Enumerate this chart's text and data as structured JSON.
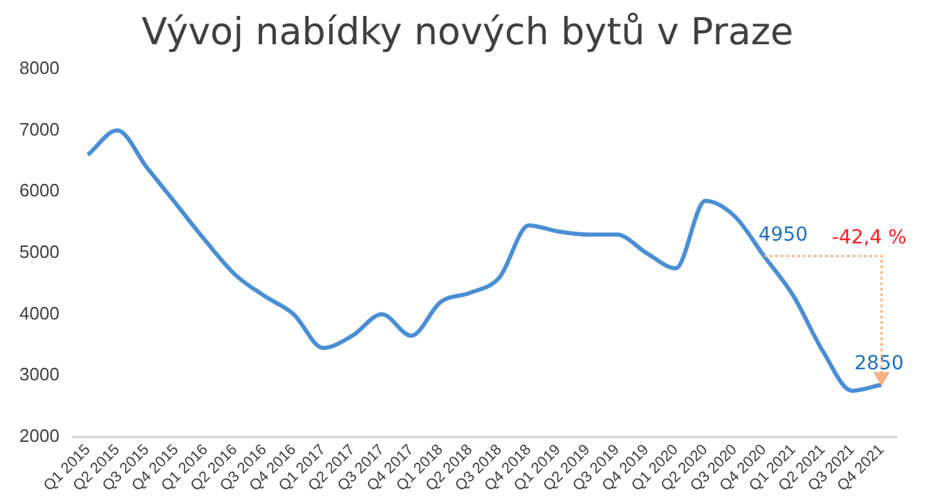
{
  "chart_data": {
    "type": "line",
    "title": "Vývoj nabídky nových bytů v Praze",
    "categories": [
      "Q1 2015",
      "Q2 2015",
      "Q3 2015",
      "Q4 2015",
      "Q1 2016",
      "Q2 2016",
      "Q3 2016",
      "Q4 2016",
      "Q1 2017",
      "Q2 2017",
      "Q3 2017",
      "Q4 2017",
      "Q1 2018",
      "Q2 2018",
      "Q3 2018",
      "Q4 2018",
      "Q1 2019",
      "Q2 2019",
      "Q3 2019",
      "Q4 2019",
      "Q1 2020",
      "Q2 2020",
      "Q3 2020",
      "Q4 2020",
      "Q1 2021",
      "Q2 2021",
      "Q3 2021",
      "Q4 2021"
    ],
    "series": [
      {
        "color": "#4a8fd4",
        "values": [
          6600,
          7000,
          6400,
          5800,
          5200,
          4650,
          4300,
          4000,
          3450,
          3650,
          4000,
          3650,
          4200,
          4350,
          4600,
          5450,
          5350,
          5300,
          5300,
          5000,
          4750,
          5850,
          5600,
          4950,
          4300,
          3400,
          2750,
          2850
        ]
      }
    ],
    "ylim": [
      2000,
      8000
    ],
    "yticks": [
      2000,
      3000,
      4000,
      5000,
      6000,
      7000,
      8000
    ],
    "grid": false,
    "legend": false,
    "marker": "none",
    "line_style": "solid",
    "annotations": [
      {
        "text": "4950",
        "x": "Q4 2020",
        "y": 4950
      },
      {
        "text": "2850",
        "x": "Q4 2021",
        "y": 2850
      },
      "-42,4 %"
    ]
  }
}
